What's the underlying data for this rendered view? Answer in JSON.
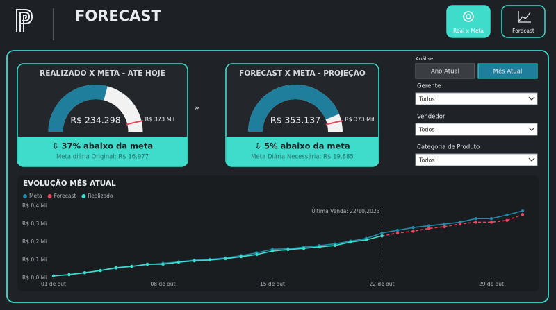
{
  "header": {
    "title": "FORECAST",
    "buttons": [
      "Real x Meta",
      "Forecast"
    ],
    "active_button": 0
  },
  "gauges": [
    {
      "title": "REALIZADO X META - ATÉ HOJE",
      "value": 234298,
      "value_label": "R$ 234.298",
      "target": 373000,
      "target_label": "R$ 373 Mil",
      "status": "⇩ 37% abaixo da meta",
      "note": "Meta diária Original: R$ 16.977"
    },
    {
      "title": "FORECAST X META - PROJEÇÃO",
      "value": 353137,
      "value_label": "R$ 353.137",
      "target": 373000,
      "target_label": "R$ 373 Mil",
      "status": "⇩ 5% abaixo da meta",
      "note": "Meta Diária Necessária: R$ 19.885"
    }
  ],
  "separator": "»",
  "filters": {
    "analysis_label": "Análise",
    "analysis_options": [
      "Ano Atual",
      "Mês Atual"
    ],
    "selected": 1,
    "dropdowns": [
      {
        "label": "Gerente",
        "value": "Todos"
      },
      {
        "label": "Vendedor",
        "value": "Todos"
      },
      {
        "label": "Categoria de Produto",
        "value": "Todos"
      }
    ]
  },
  "chart_data": {
    "type": "line",
    "title": "EVOLUÇÃO MÊS ATUAL",
    "x": [
      1,
      2,
      3,
      4,
      5,
      6,
      7,
      8,
      9,
      10,
      11,
      12,
      13,
      14,
      15,
      16,
      17,
      18,
      19,
      20,
      21,
      22,
      23,
      24,
      25,
      26,
      27,
      28,
      29,
      30,
      31
    ],
    "xlim": [
      0.3,
      31.7
    ],
    "xticks": [
      {
        "value": 1,
        "label": "01 de out"
      },
      {
        "value": 8,
        "label": "08 de out"
      },
      {
        "value": 15,
        "label": "15 de out"
      },
      {
        "value": 22,
        "label": "22 de out"
      },
      {
        "value": 29,
        "label": "29 de out"
      }
    ],
    "ylim": [
      0,
      0.42
    ],
    "yticks": [
      {
        "value": 0,
        "label": "R$ 0,0 Mi"
      },
      {
        "value": 0.1,
        "label": "R$ 0,1 Mi"
      },
      {
        "value": 0.2,
        "label": "R$ 0,2 Mi"
      },
      {
        "value": 0.3,
        "label": "R$ 0,3 Mi"
      },
      {
        "value": 0.4,
        "label": "R$ 0,4 Mi"
      }
    ],
    "grid": false,
    "series": [
      {
        "name": "Meta",
        "color": "#2389a8",
        "dashed": false,
        "values": [
          0.012,
          0.02,
          0.03,
          0.042,
          0.055,
          0.065,
          0.075,
          0.082,
          0.09,
          0.1,
          0.104,
          0.112,
          0.125,
          0.14,
          0.16,
          0.163,
          0.172,
          0.18,
          0.19,
          0.205,
          0.22,
          0.25,
          0.265,
          0.28,
          0.29,
          0.3,
          0.31,
          0.33,
          0.33,
          0.35,
          0.373
        ]
      },
      {
        "name": "Forecast",
        "color": "#e8475f",
        "dashed": true,
        "values": [
          null,
          null,
          null,
          null,
          null,
          null,
          null,
          null,
          null,
          null,
          null,
          null,
          null,
          null,
          null,
          null,
          null,
          null,
          null,
          null,
          null,
          0.234,
          0.25,
          0.26,
          0.275,
          0.285,
          0.3,
          0.31,
          0.31,
          0.32,
          0.353
        ]
      },
      {
        "name": "Realizado",
        "color": "#3fdccb",
        "dashed": false,
        "values": [
          0.012,
          0.019,
          0.03,
          0.042,
          0.058,
          0.065,
          0.077,
          0.077,
          0.088,
          0.096,
          0.1,
          0.108,
          0.119,
          0.131,
          0.15,
          0.158,
          0.165,
          0.173,
          0.181,
          0.2,
          0.212,
          0.234,
          null,
          null,
          null,
          null,
          null,
          null,
          null,
          null,
          null
        ]
      }
    ],
    "annotation": {
      "text": "Última Venda: 22/10/2023",
      "x": 22
    }
  }
}
